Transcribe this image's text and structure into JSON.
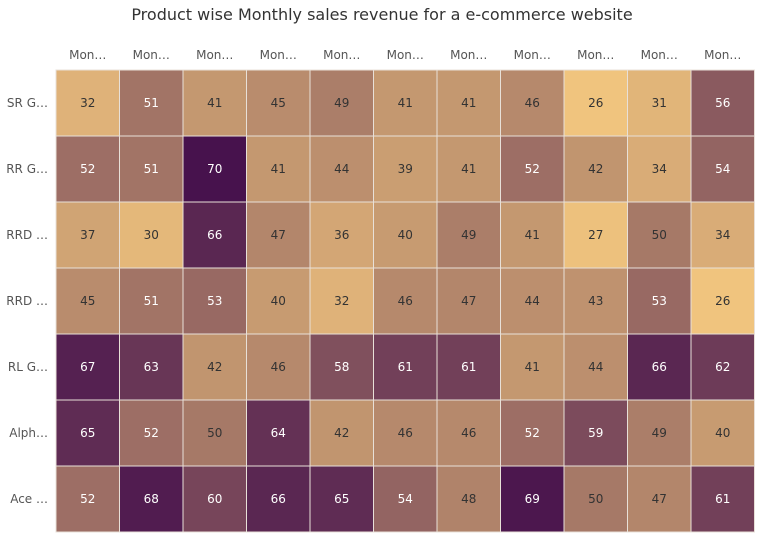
{
  "chart_data": {
    "type": "heatmap",
    "title": "Product wise Monthly sales revenue for a e-commerce website",
    "x_labels": [
      "Mon…",
      "Mon…",
      "Mon…",
      "Mon…",
      "Mon…",
      "Mon…",
      "Mon…",
      "Mon…",
      "Mon…",
      "Mon…",
      "Mon…"
    ],
    "y_labels": [
      "SR G…",
      "RR G…",
      "RRD …",
      "RRD …",
      "RL G…",
      "Alph…",
      "Ace …"
    ],
    "values": [
      [
        32,
        51,
        41,
        45,
        49,
        41,
        41,
        46,
        26,
        31,
        56
      ],
      [
        52,
        51,
        70,
        41,
        44,
        39,
        41,
        52,
        42,
        34,
        54
      ],
      [
        37,
        30,
        66,
        47,
        36,
        40,
        49,
        41,
        27,
        50,
        34
      ],
      [
        45,
        51,
        53,
        40,
        32,
        46,
        47,
        44,
        43,
        53,
        26
      ],
      [
        67,
        63,
        42,
        46,
        58,
        61,
        61,
        41,
        44,
        66,
        62
      ],
      [
        65,
        52,
        50,
        64,
        42,
        46,
        46,
        52,
        59,
        49,
        40
      ],
      [
        52,
        68,
        60,
        66,
        65,
        54,
        48,
        69,
        50,
        47,
        61
      ]
    ],
    "value_range": [
      26,
      70
    ],
    "color_scale": [
      "#F0C47E",
      "#B0836A",
      "#47124D"
    ],
    "cell_border_color": "#E8E0D8",
    "legend": "none"
  }
}
